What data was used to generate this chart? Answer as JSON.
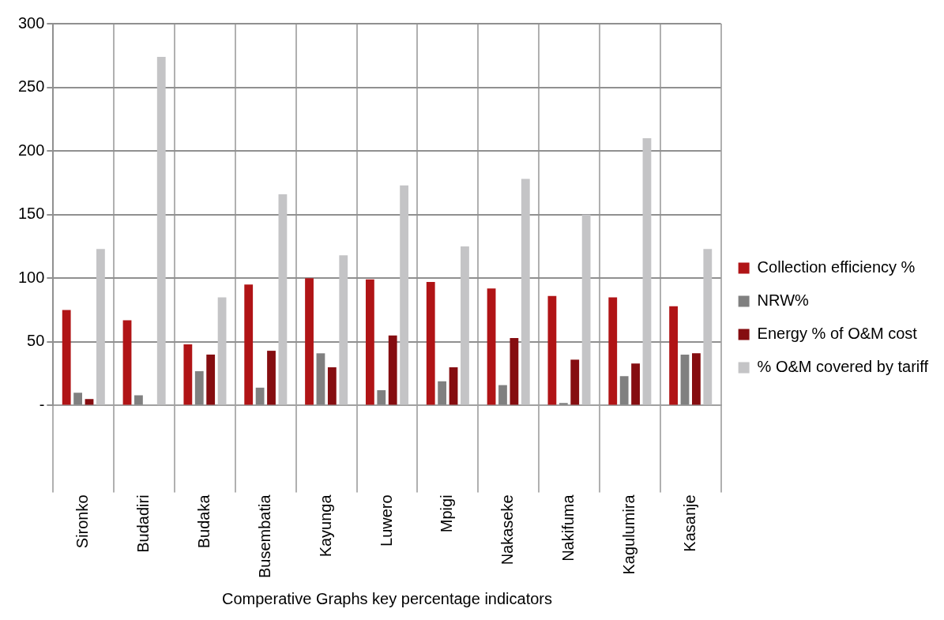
{
  "chart_data": {
    "type": "bar",
    "xlabel": "Comperative Graphs key percentage indicators",
    "categories": [
      "Sironko",
      "Budadiri",
      "Budaka",
      "Busembatia",
      "Kayunga",
      "Luwero",
      "Mpigi",
      "Nakaseke",
      "Nakifuma",
      "Kagulumira",
      "Kasanje"
    ],
    "series": [
      {
        "name": "Collection efficiency %",
        "color": "#b01416",
        "values": [
          75,
          67,
          48,
          95,
          100,
          99,
          97,
          92,
          86,
          85,
          78
        ]
      },
      {
        "name": "NRW%",
        "color": "#808080",
        "values": [
          10,
          8,
          27,
          14,
          41,
          12,
          19,
          16,
          2,
          23,
          40
        ]
      },
      {
        "name": "Energy % of O&M cost",
        "color": "#850d10",
        "values": [
          5,
          0,
          40,
          43,
          30,
          55,
          30,
          53,
          36,
          33,
          41
        ]
      },
      {
        "name": "% O&M covered by tariff",
        "color": "#c4c4c6",
        "values": [
          123,
          274,
          85,
          166,
          118,
          173,
          125,
          178,
          150,
          210,
          123
        ]
      }
    ],
    "ylim": [
      0,
      300
    ],
    "yticks": [
      {
        "value": 0,
        "label": "-"
      },
      50,
      100,
      150,
      200,
      250,
      300
    ],
    "grid": true,
    "legend": "right"
  }
}
